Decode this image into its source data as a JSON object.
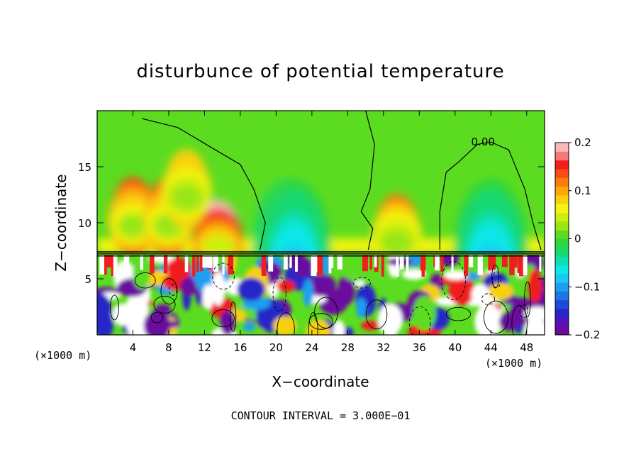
{
  "chart_data": {
    "type": "heatmap",
    "title": "disturbunce of potential temperature",
    "xlabel": "X−coordinate",
    "ylabel": "Z−coordinate",
    "x_unit": "(×1000 m)",
    "x_ticks": [
      "4",
      "8",
      "12",
      "16",
      "20",
      "24",
      "28",
      "32",
      "36",
      "40",
      "44",
      "48"
    ],
    "x_tick_values": [
      4,
      8,
      12,
      16,
      20,
      24,
      28,
      32,
      36,
      40,
      44,
      48
    ],
    "y_ticks": [
      "5",
      "10",
      "15"
    ],
    "y_tick_values": [
      5,
      10,
      15
    ],
    "xlim": [
      0,
      50
    ],
    "ylim": [
      0,
      20
    ],
    "colorbar": {
      "labels": [
        "0.2",
        "0.1",
        "0",
        "−0.1",
        "−0.2"
      ],
      "values": [
        0.2,
        0.1,
        0,
        -0.1,
        -0.2
      ],
      "range": [
        -0.2,
        0.2
      ],
      "colors": [
        "#6a0a9e",
        "#5511b8",
        "#2626c8",
        "#1e4ad8",
        "#1f74e6",
        "#1d9ff0",
        "#19c8f4",
        "#0fe6e8",
        "#10e0b0",
        "#18d870",
        "#2ed640",
        "#5cdc20",
        "#98e614",
        "#cdef10",
        "#f4f410",
        "#f8d010",
        "#fca808",
        "#fc7c08",
        "#fa4c14",
        "#f01e1e",
        "#f87878",
        "#fcb8b8"
      ]
    },
    "contour_label": "0.00",
    "contour_interval_text": "CONTOUR INTERVAL = 3.000E−01",
    "features": {
      "warm_anomalies": [
        [
          4,
          10.5,
          0.12
        ],
        [
          8,
          10.5,
          0.12
        ],
        [
          13.5,
          8.5,
          0.18
        ],
        [
          10,
          13,
          0.08
        ],
        [
          33.5,
          9,
          0.1
        ]
      ],
      "cold_anomalies": [
        [
          21.5,
          9.5,
          -0.2
        ],
        [
          22,
          12.5,
          -0.08
        ],
        [
          44,
          9.5,
          -0.2
        ],
        [
          44,
          12,
          -0.08
        ]
      ],
      "inversion_height": 7.3
    }
  }
}
